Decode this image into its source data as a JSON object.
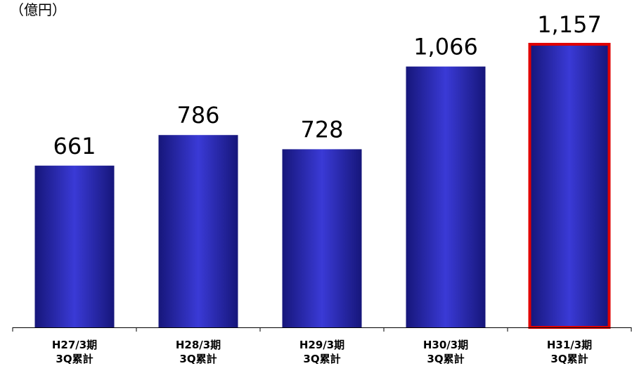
{
  "chart_data": {
    "type": "bar",
    "unit_label": "（億円）",
    "categories": [
      [
        "H27/3期",
        "3Q累計"
      ],
      [
        "H28/3期",
        "3Q累計"
      ],
      [
        "H29/3期",
        "3Q累計"
      ],
      [
        "H30/3期",
        "3Q累計"
      ],
      [
        "H31/3期",
        "3Q累計"
      ]
    ],
    "values": [
      661,
      786,
      728,
      1066,
      1157
    ],
    "value_labels": [
      "661",
      "786",
      "728",
      "1,066",
      "1,157"
    ],
    "ylim": [
      0,
      1157
    ],
    "highlight_index": 4,
    "colors": {
      "bar_edge": "#16167a",
      "bar_mid": "#3a3ad6",
      "highlight_border": "#e00000",
      "axis": "#000000"
    },
    "grid": false,
    "legend": "none"
  }
}
